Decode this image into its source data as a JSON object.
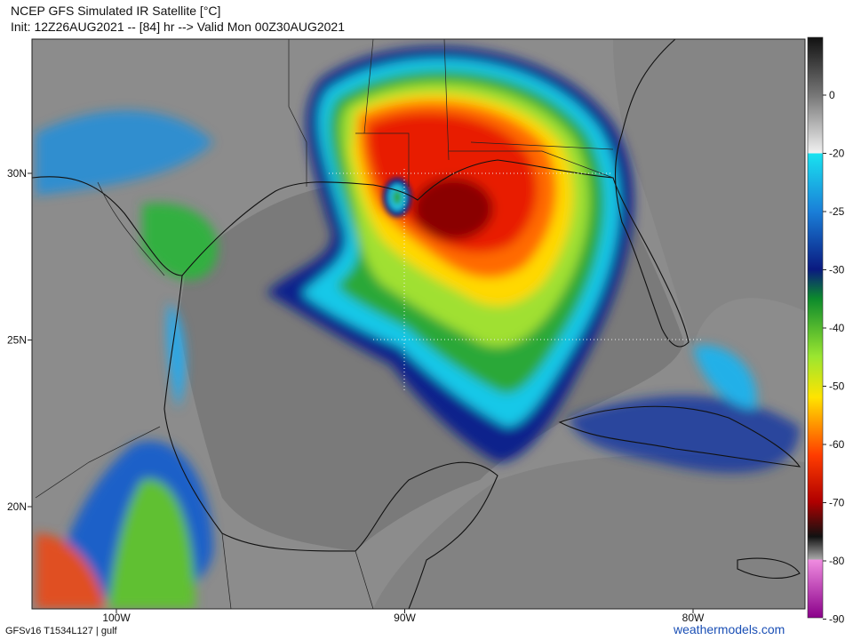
{
  "header": {
    "title": "NCEP GFS Simulated IR Satellite [°C]",
    "subtitle": "Init: 12Z26AUG2021 -- [84] hr --> Valid Mon 00Z30AUG2021"
  },
  "map": {
    "lat_labels": [
      "30N",
      "25N",
      "20N"
    ],
    "lon_labels": [
      "100W",
      "90W",
      "80W"
    ]
  },
  "colorbar": {
    "ticks": [
      0,
      -20,
      -25,
      -30,
      -40,
      -50,
      -60,
      -70,
      -80,
      -90
    ]
  },
  "footer": {
    "left": "GFSv16 T1534L127 | gulf",
    "right": "weathermodels.com"
  }
}
